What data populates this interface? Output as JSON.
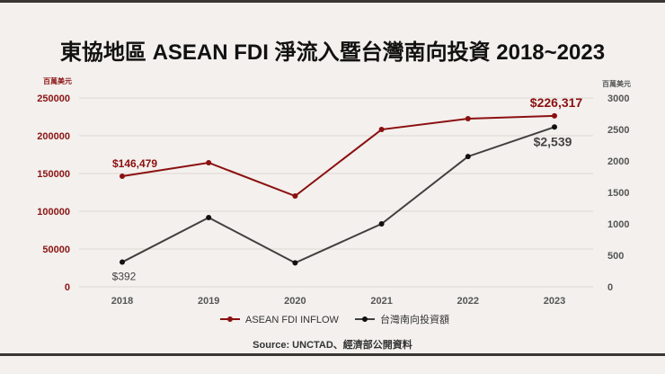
{
  "title": "東協地區 ASEAN FDI 淨流入暨台灣南向投資 2018~2023",
  "source": "Source:  UNCTAD、經濟部公開資料",
  "chart_data": {
    "type": "line",
    "title": "東協地區 ASEAN FDI 淨流入暨台灣南向投資 2018~2023",
    "categories": [
      "2018",
      "2019",
      "2020",
      "2021",
      "2022",
      "2023"
    ],
    "y_left": {
      "unit_label": "百萬美元",
      "range": [
        0,
        250000
      ],
      "ticks": [
        "0",
        "50000",
        "100000",
        "150000",
        "200000",
        "250000"
      ],
      "color": "#8b1414"
    },
    "y_right": {
      "unit_label": "百萬美元",
      "range": [
        0,
        3000
      ],
      "ticks": [
        "0",
        "500",
        "1000",
        "1500",
        "2000",
        "2500",
        "3000"
      ],
      "color": "#555555"
    },
    "grid": true,
    "legend_position": "bottom",
    "series": [
      {
        "name": "ASEAN FDI INFLOW",
        "axis": "left",
        "color": "#8b1010",
        "values": [
          146479,
          164300,
          120200,
          208300,
          222600,
          226317
        ],
        "labels": [
          {
            "index": 0,
            "text": "$146,479"
          },
          {
            "index": 5,
            "text": "$226,317"
          }
        ]
      },
      {
        "name": "台灣南向投資額",
        "axis": "right",
        "color": "#404040",
        "values": [
          392,
          1100,
          380,
          1000,
          2070,
          2539
        ],
        "labels": [
          {
            "index": 0,
            "text": "$392"
          },
          {
            "index": 5,
            "text": "$2,539"
          }
        ]
      }
    ]
  }
}
